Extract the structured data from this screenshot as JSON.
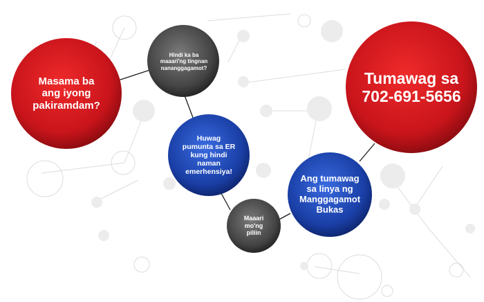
{
  "nodes": {
    "feeling_unwell": {
      "text": "Masama ba\nang iyong\npakiramdam?"
    },
    "not_seen": {
      "text": "Hindi ka ba\nmaaari'ng tingnan\nnananggagamot?"
    },
    "no_er": {
      "text": "Huwag\npumunta sa ER\nkung hindi\nnaman\nemerhensiya!"
    },
    "choose": {
      "text": "Maaari\nmo'ng\npiliin"
    },
    "hotline": {
      "text": "Ang tumawag\nsa linya ng\nManggagamot\nBukas"
    },
    "call": {
      "text": "Tumawag sa\n702-691-5656"
    }
  },
  "colors": {
    "red": "#c8141b",
    "blue": "#1a3fa6",
    "gray": "#444444",
    "decor_fill": "#ececec",
    "decor_line": "#dcdcdc",
    "connector": "#1a1a1a"
  }
}
